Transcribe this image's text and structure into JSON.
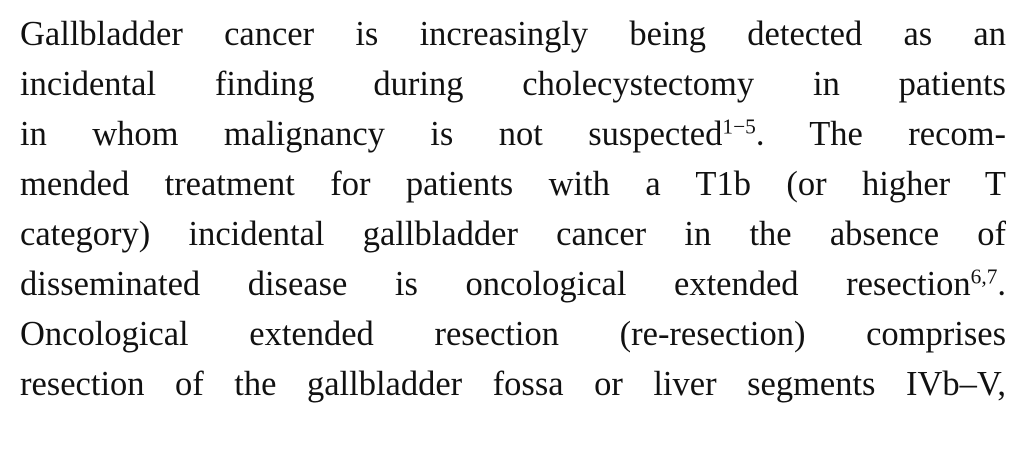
{
  "paragraph": {
    "lines": [
      {
        "text": "Gallbladder cancer is increasingly being detected as an"
      },
      {
        "text": "incidental finding during cholecystectomy in patients"
      },
      {
        "text": "in whom malignancy is not suspected",
        "sup": "1−5",
        "after": ". The recom-"
      },
      {
        "text": "mended treatment for patients with a T1b (or higher T"
      },
      {
        "text": "category) incidental gallbladder cancer in the absence of"
      },
      {
        "text": "disseminated disease is oncological extended resection",
        "sup": "6,7",
        "after": "."
      },
      {
        "text": "Oncological extended resection (re-resection) comprises"
      },
      {
        "text": "resection of the gallbladder fossa or liver segments IVb–V,"
      }
    ]
  }
}
